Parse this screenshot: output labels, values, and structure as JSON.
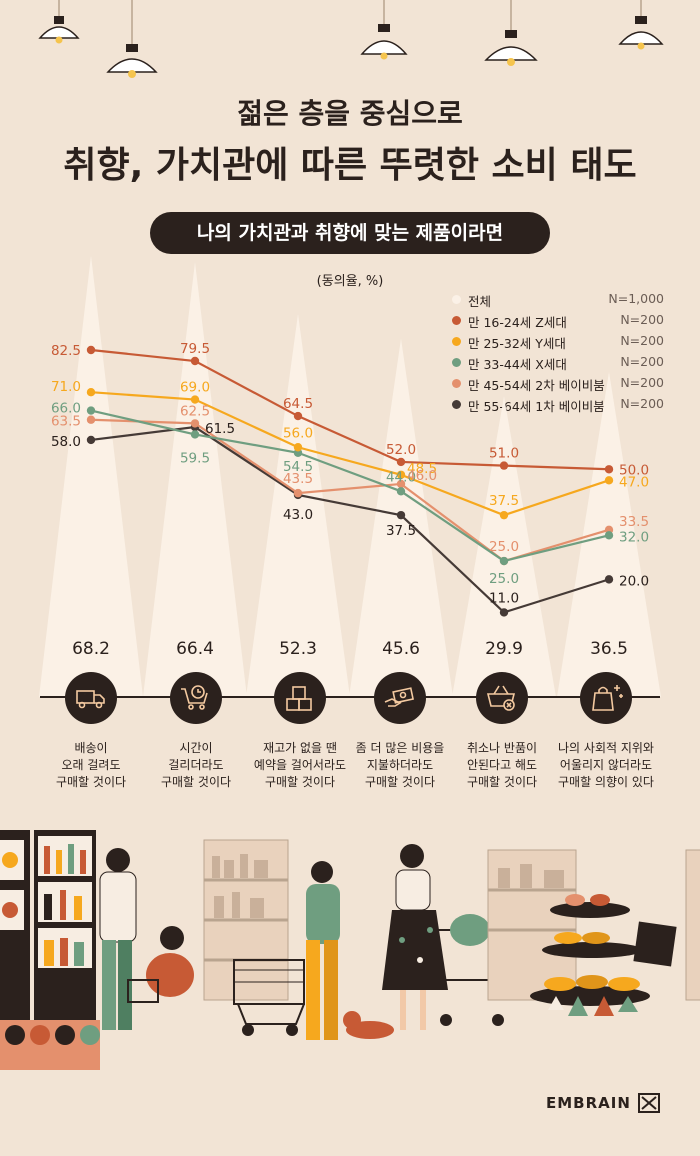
{
  "header": {
    "subtitle": "젊은 층을 중심으로",
    "title": "취향, 가치관에 따른 뚜렷한 소비 태도",
    "pill": "나의 가치관과 취향에 맞는 제품이라면",
    "unit": "(동의율, %)"
  },
  "legend": [
    {
      "name": "전체",
      "n": "N=1,000",
      "color": "#fbf1e7"
    },
    {
      "name": "만 16-24세 Z세대",
      "n": "N=200",
      "color": "#c75a35"
    },
    {
      "name": "만 25-32세 Y세대",
      "n": "N=200",
      "color": "#f6a81e"
    },
    {
      "name": "만 33-44세 X세대",
      "n": "N=200",
      "color": "#6f9e80"
    },
    {
      "name": "만 45-54세 2차 베이비붐",
      "n": "N=200",
      "color": "#e4906d"
    },
    {
      "name": "만 55-64세 1차 베이비붐",
      "n": "N=200",
      "color": "#453a36"
    }
  ],
  "categories": [
    {
      "icon": "delivery-truck-icon",
      "label1": "배송이",
      "label2": "오래 걸려도",
      "label3": "구매할 것이다"
    },
    {
      "icon": "cart-clock-icon",
      "label1": "시간이",
      "label2": "걸리더라도",
      "label3": "구매할 것이다"
    },
    {
      "icon": "boxes-icon",
      "label1": "재고가 없을 땐",
      "label2": "예약을 걸어서라도",
      "label3": "구매할 것이다"
    },
    {
      "icon": "money-hand-icon",
      "label1": "좀 더 많은 비용을",
      "label2": "지불하더라도",
      "label3": "구매할 것이다"
    },
    {
      "icon": "basket-cancel-icon",
      "label1": "취소나 반품이",
      "label2": "안된다고 해도",
      "label3": "구매할 것이다"
    },
    {
      "icon": "shopping-bag-sparkle-icon",
      "label1": "나의 사회적 지위와",
      "label2": "어울리지 않더라도",
      "label3": "구매할 의향이 있다"
    }
  ],
  "chart_data": {
    "type": "line",
    "categories": [
      "배송이 오래 걸려도 구매할 것이다",
      "시간이 걸리더라도 구매할 것이다",
      "재고가 없을 땐 예약을 걸어서라도 구매할 것이다",
      "좀 더 많은 비용을 지불하더라도 구매할 것이다",
      "취소나 반품이 안된다고 해도 구매할 것이다",
      "나의 사회적 지위와 어울리지 않더라도 구매할 의향이 있다"
    ],
    "total": {
      "name": "전체",
      "values": [
        68.2,
        66.4,
        52.3,
        45.6,
        29.9,
        36.5
      ],
      "color": "#fbf1e7"
    },
    "series": [
      {
        "name": "만 16-24세 Z세대",
        "values": [
          82.5,
          79.5,
          64.5,
          52.0,
          51.0,
          50.0
        ],
        "color": "#c75a35"
      },
      {
        "name": "만 25-32세 Y세대",
        "values": [
          71.0,
          69.0,
          56.0,
          48.5,
          37.5,
          47.0
        ],
        "color": "#f6a81e"
      },
      {
        "name": "만 33-44세 X세대",
        "values": [
          66.0,
          59.5,
          54.5,
          44.0,
          25.0,
          32.0
        ],
        "color": "#6f9e80"
      },
      {
        "name": "만 45-54세 2차 베이비붐",
        "values": [
          63.5,
          62.5,
          43.5,
          46.0,
          25.0,
          33.5
        ],
        "color": "#e4906d"
      },
      {
        "name": "만 55-64세 1차 베이비붐",
        "values": [
          58.0,
          61.5,
          43.0,
          37.5,
          11.0,
          20.0
        ],
        "color": "#453a36"
      }
    ],
    "label_text": [
      [
        "82.5",
        "79.5",
        "64.5",
        "52.0",
        "51.0",
        "50.0"
      ],
      [
        "71.0",
        "69.0",
        "56.0",
        "48.5",
        "37.5",
        "47.0"
      ],
      [
        "66.0",
        "59.5",
        "54.5",
        "44.0",
        "25.0",
        "32.0"
      ],
      [
        "63.5",
        "62.5",
        "43.5",
        "46.0",
        "25.0",
        "33.5"
      ],
      [
        "58.0",
        "61.5",
        "43.0",
        "37.5",
        "11.0",
        "20.0"
      ]
    ],
    "total_text": [
      "68.2",
      "66.4",
      "52.3",
      "45.6",
      "29.9",
      "36.5"
    ],
    "legend_position": "top-right",
    "grid": false
  },
  "footer": {
    "brand": "EMBRAIN"
  }
}
